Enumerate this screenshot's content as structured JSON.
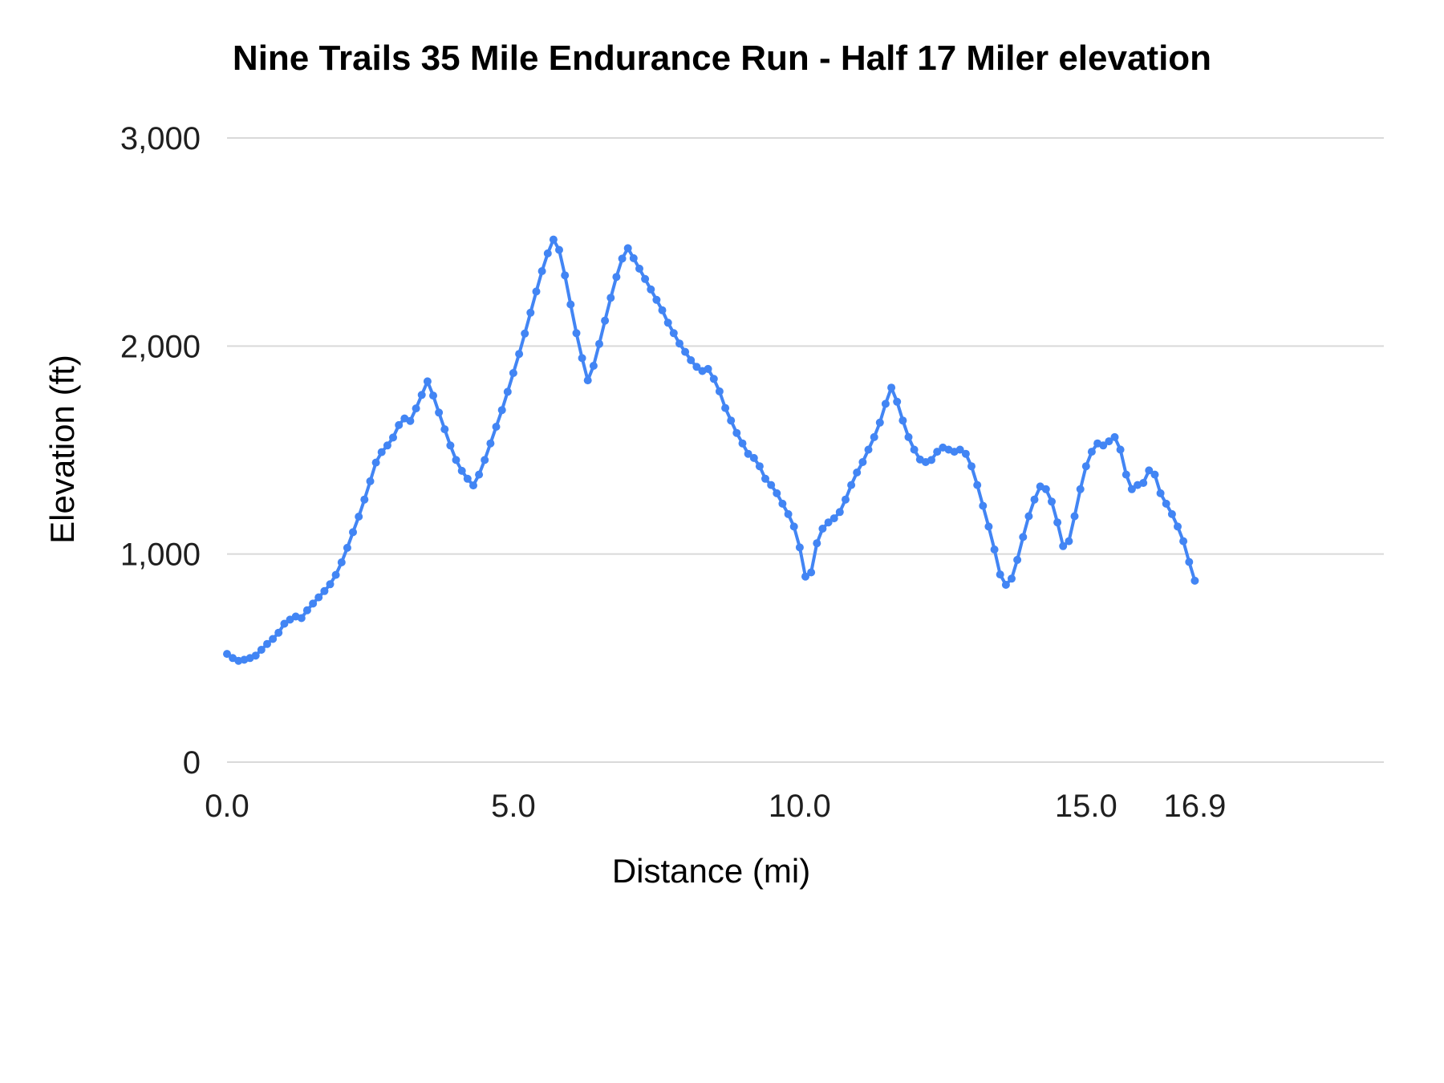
{
  "page": {
    "background": "#ffffff"
  },
  "chart_data": {
    "type": "line",
    "title": "Nine Trails 35 Mile Endurance Run - Half 17 Miler elevation",
    "xlabel": "Distance (mi)",
    "ylabel": "Elevation (ft)",
    "legend": "none",
    "grid": "horizontal",
    "line_color": "#4285f4",
    "grid_color": "#d9d9d9",
    "text_color": "#1f1f1f",
    "point_radius": 5,
    "xlim": [
      0,
      20.2
    ],
    "ylim": [
      0,
      3000
    ],
    "xticks": [
      {
        "value": 0,
        "label": "0.0"
      },
      {
        "value": 5,
        "label": "5.0"
      },
      {
        "value": 10,
        "label": "10.0"
      },
      {
        "value": 15,
        "label": "15.0"
      },
      {
        "value": 16.9,
        "label": "16.9"
      }
    ],
    "yticks": [
      {
        "value": 0,
        "label": "0"
      },
      {
        "value": 1000,
        "label": "1,000"
      },
      {
        "value": 2000,
        "label": "2,000"
      },
      {
        "value": 3000,
        "label": "3,000"
      }
    ],
    "x": [
      0.0,
      0.1,
      0.2,
      0.3,
      0.4,
      0.5,
      0.6,
      0.7,
      0.8,
      0.9,
      1.0,
      1.1,
      1.2,
      1.3,
      1.4,
      1.5,
      1.6,
      1.7,
      1.8,
      1.9,
      2.0,
      2.1,
      2.2,
      2.3,
      2.4,
      2.5,
      2.6,
      2.7,
      2.8,
      2.9,
      3.0,
      3.1,
      3.2,
      3.3,
      3.4,
      3.5,
      3.6,
      3.7,
      3.8,
      3.9,
      4.0,
      4.1,
      4.2,
      4.3,
      4.4,
      4.5,
      4.6,
      4.7,
      4.8,
      4.9,
      5.0,
      5.1,
      5.2,
      5.3,
      5.4,
      5.5,
      5.6,
      5.7,
      5.8,
      5.9,
      6.0,
      6.1,
      6.2,
      6.3,
      6.4,
      6.5,
      6.6,
      6.7,
      6.8,
      6.9,
      7.0,
      7.1,
      7.2,
      7.3,
      7.4,
      7.5,
      7.6,
      7.7,
      7.8,
      7.9,
      8.0,
      8.1,
      8.2,
      8.3,
      8.4,
      8.5,
      8.6,
      8.7,
      8.8,
      8.9,
      9.0,
      9.1,
      9.2,
      9.3,
      9.4,
      9.5,
      9.6,
      9.7,
      9.8,
      9.9,
      10.0,
      10.1,
      10.2,
      10.3,
      10.4,
      10.5,
      10.6,
      10.7,
      10.8,
      10.9,
      11.0,
      11.1,
      11.2,
      11.3,
      11.4,
      11.5,
      11.6,
      11.7,
      11.8,
      11.9,
      12.0,
      12.1,
      12.2,
      12.3,
      12.4,
      12.5,
      12.6,
      12.7,
      12.8,
      12.9,
      13.0,
      13.1,
      13.2,
      13.3,
      13.4,
      13.5,
      13.6,
      13.7,
      13.8,
      13.9,
      14.0,
      14.1,
      14.2,
      14.3,
      14.4,
      14.5,
      14.6,
      14.7,
      14.8,
      14.9,
      15.0,
      15.1,
      15.2,
      15.3,
      15.4,
      15.5,
      15.6,
      15.7,
      15.8,
      15.9,
      16.0,
      16.1,
      16.2,
      16.3,
      16.4,
      16.5,
      16.6,
      16.7,
      16.8,
      16.9
    ],
    "y": [
      520,
      500,
      487,
      492,
      500,
      512,
      540,
      568,
      592,
      622,
      665,
      685,
      700,
      692,
      730,
      762,
      792,
      822,
      855,
      900,
      960,
      1030,
      1105,
      1180,
      1262,
      1350,
      1440,
      1490,
      1522,
      1560,
      1620,
      1652,
      1640,
      1700,
      1765,
      1830,
      1762,
      1680,
      1600,
      1522,
      1452,
      1400,
      1362,
      1330,
      1382,
      1452,
      1532,
      1612,
      1692,
      1780,
      1870,
      1962,
      2060,
      2160,
      2262,
      2360,
      2445,
      2512,
      2462,
      2340,
      2200,
      2062,
      1942,
      1835,
      1905,
      2010,
      2122,
      2232,
      2332,
      2420,
      2470,
      2422,
      2372,
      2322,
      2272,
      2222,
      2172,
      2112,
      2062,
      2012,
      1972,
      1932,
      1900,
      1880,
      1890,
      1842,
      1782,
      1702,
      1642,
      1582,
      1532,
      1482,
      1462,
      1422,
      1362,
      1332,
      1292,
      1242,
      1192,
      1132,
      1032,
      892,
      912,
      1052,
      1122,
      1152,
      1172,
      1202,
      1262,
      1332,
      1392,
      1442,
      1502,
      1562,
      1632,
      1722,
      1800,
      1732,
      1642,
      1562,
      1502,
      1455,
      1442,
      1452,
      1492,
      1512,
      1502,
      1492,
      1502,
      1482,
      1422,
      1332,
      1232,
      1132,
      1022,
      902,
      852,
      882,
      972,
      1082,
      1182,
      1262,
      1325,
      1312,
      1252,
      1152,
      1038,
      1062,
      1182,
      1312,
      1422,
      1492,
      1532,
      1522,
      1542,
      1562,
      1502,
      1382,
      1312,
      1332,
      1342,
      1402,
      1382,
      1292,
      1242,
      1192,
      1132,
      1062,
      962,
      872
    ]
  }
}
